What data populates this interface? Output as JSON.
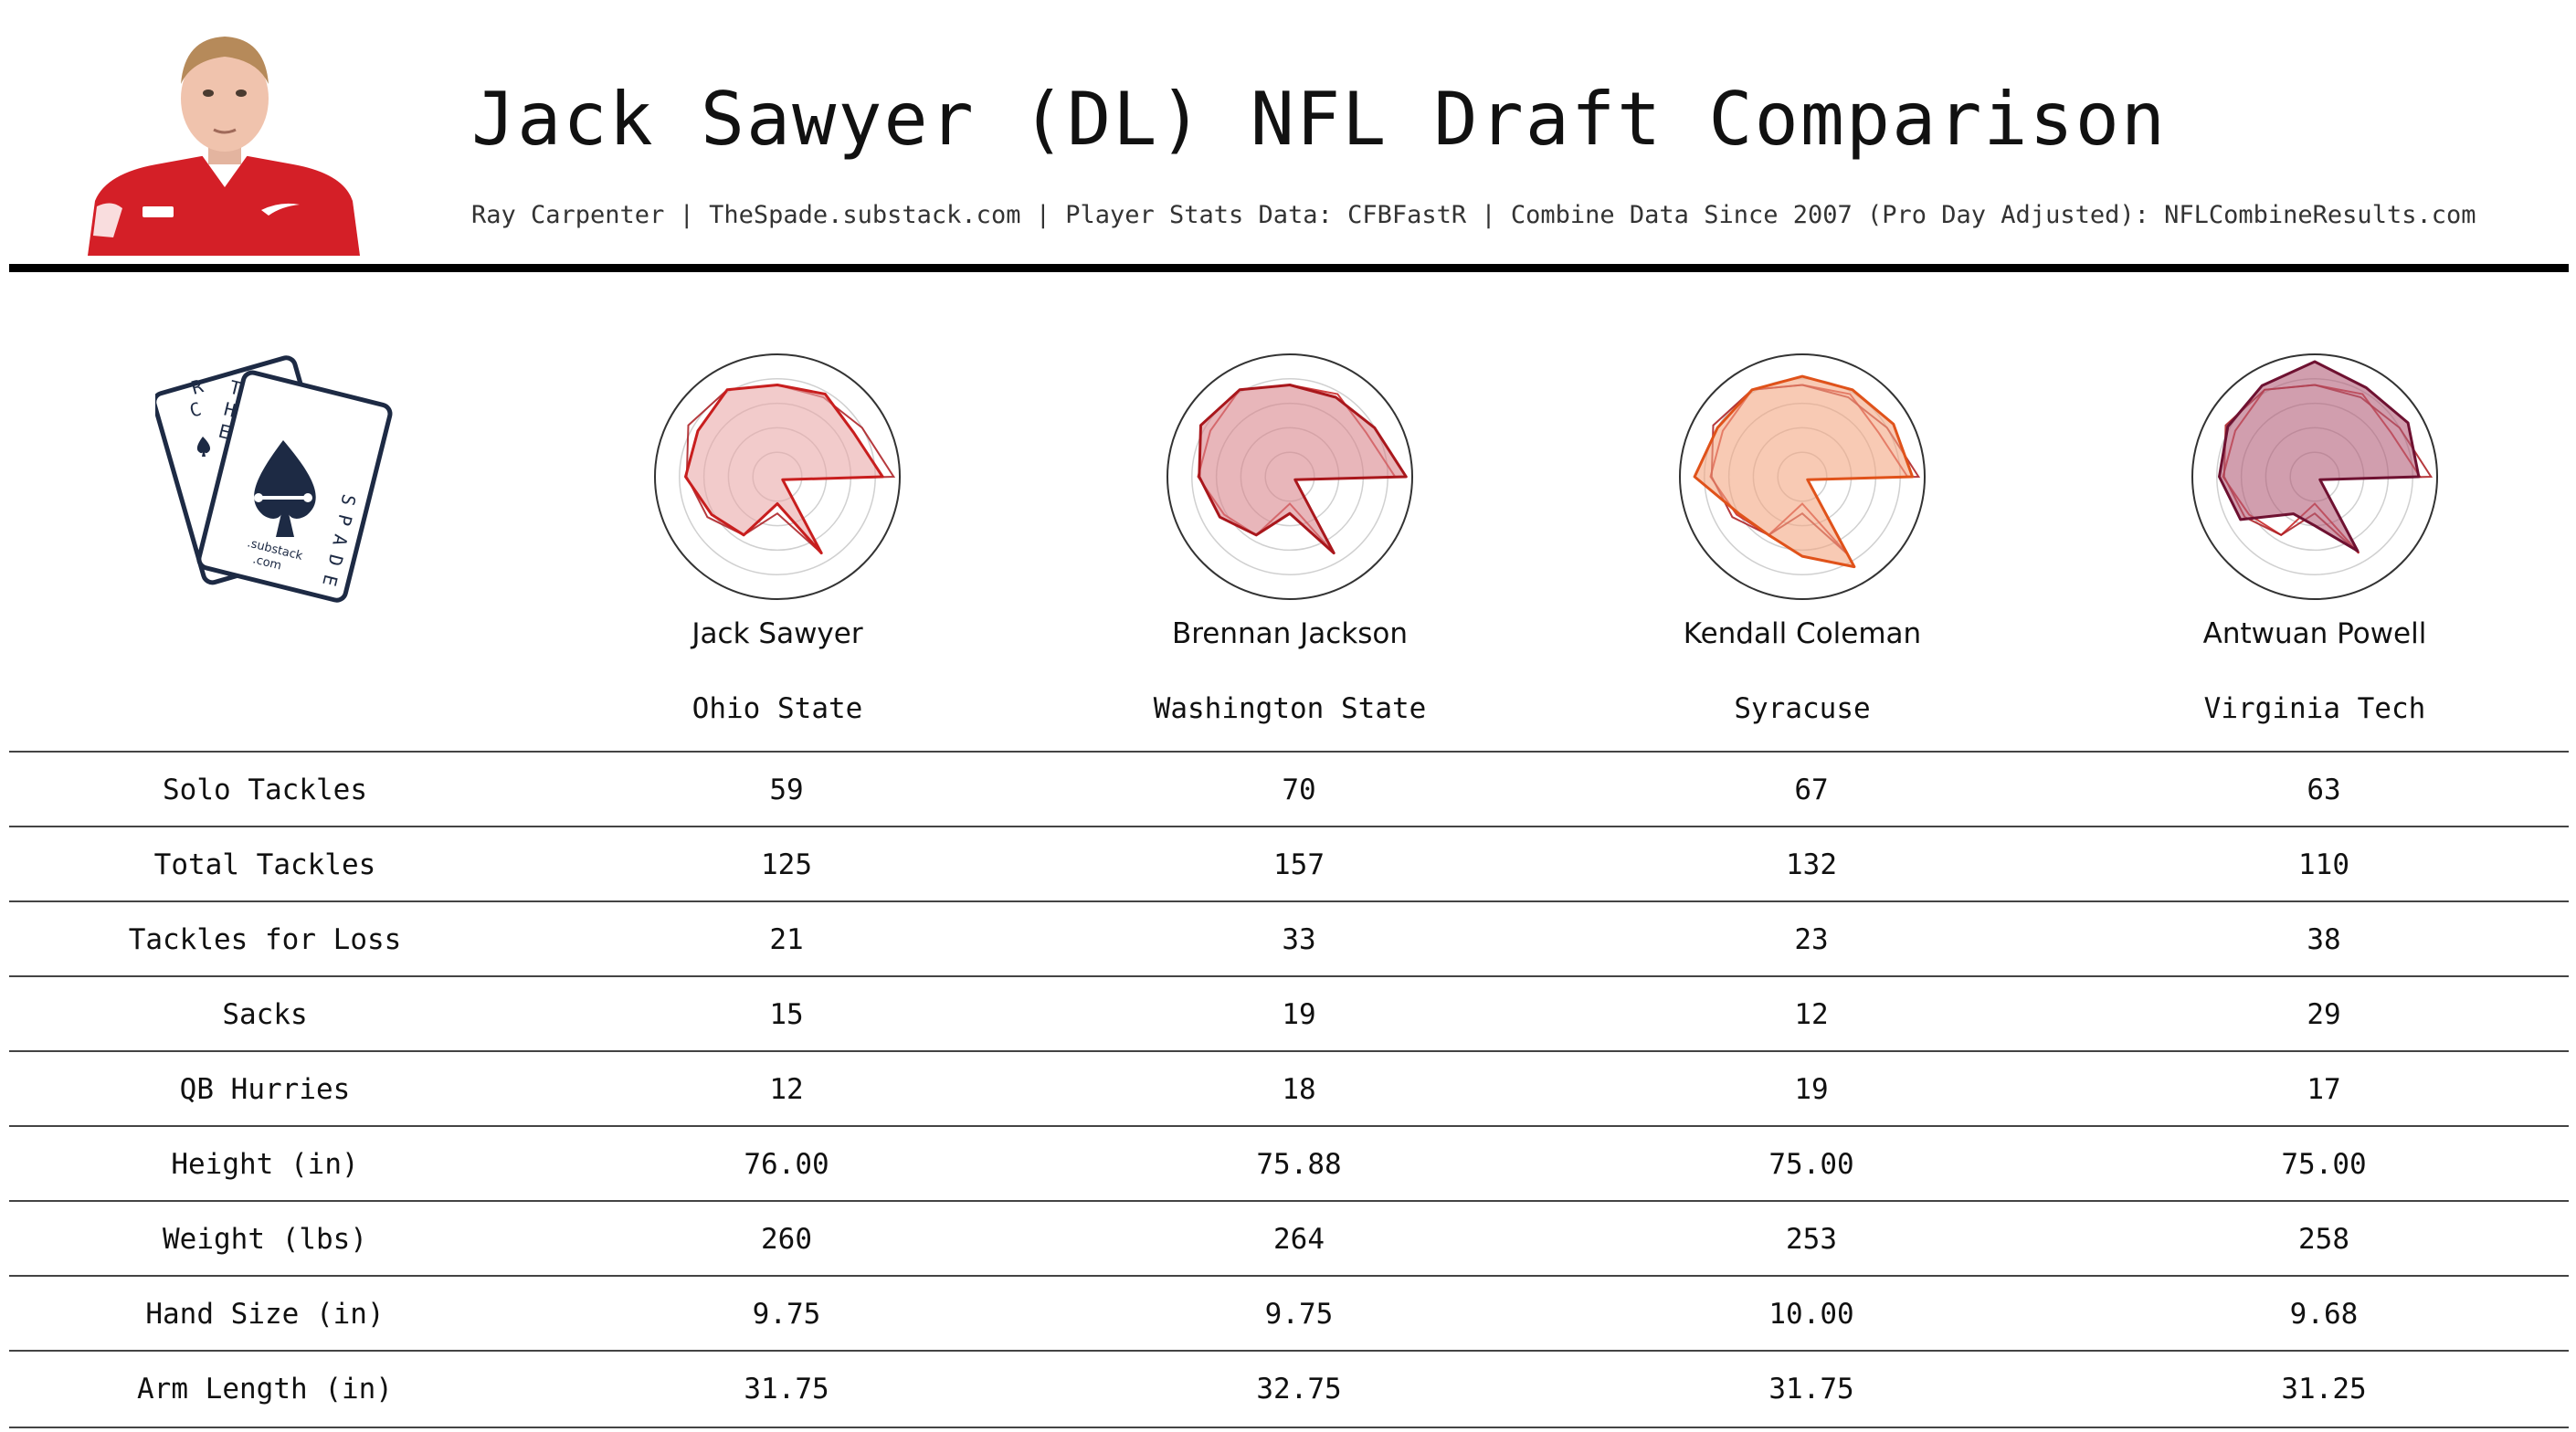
{
  "header": {
    "title": "Jack Sawyer (DL) NFL Draft Comparison",
    "subtitle": "Ray Carpenter | TheSpade.substack.com | Player Stats Data: CFBFastR | Combine Data Since 2007 (Pro Day Adjusted): NFLCombineResults.com"
  },
  "logo": {
    "letters": [
      "R",
      "C",
      "T",
      "H",
      "E",
      "S",
      "P",
      "A",
      "D",
      "E"
    ],
    "sub1": ".substack",
    "sub2": ".com"
  },
  "players": [
    {
      "name": "Jack Sawyer",
      "school": "Ohio State",
      "color": "#c81e1e",
      "fill": "#e9a8a8"
    },
    {
      "name": "Brennan Jackson",
      "school": "Washington State",
      "color": "#a9171c",
      "fill": "#d9868c"
    },
    {
      "name": "Kendall Coleman",
      "school": "Syracuse",
      "color": "#e0521a",
      "fill": "#f3a682"
    },
    {
      "name": "Antwuan Powell",
      "school": "Virginia Tech",
      "color": "#6e1131",
      "fill": "#b25e78"
    }
  ],
  "chart_data": {
    "type": "table",
    "columns": [
      "Jack Sawyer",
      "Brennan Jackson",
      "Kendall Coleman",
      "Antwuan Powell"
    ],
    "rows": [
      {
        "label": "Solo Tackles",
        "values": [
          "59",
          "70",
          "67",
          "63"
        ]
      },
      {
        "label": "Total Tackles",
        "values": [
          "125",
          "157",
          "132",
          "110"
        ]
      },
      {
        "label": "Tackles for Loss",
        "values": [
          "21",
          "33",
          "23",
          "38"
        ]
      },
      {
        "label": "Sacks",
        "values": [
          "15",
          "19",
          "12",
          "29"
        ]
      },
      {
        "label": "QB Hurries",
        "values": [
          "12",
          "18",
          "19",
          "17"
        ]
      },
      {
        "label": "Height (in)",
        "values": [
          "76.00",
          "75.88",
          "75.00",
          "75.00"
        ]
      },
      {
        "label": "Weight (lbs)",
        "values": [
          "260",
          "264",
          "253",
          "258"
        ]
      },
      {
        "label": "Hand Size (in)",
        "values": [
          "9.75",
          "9.75",
          "10.00",
          "9.68"
        ]
      },
      {
        "label": "Arm Length (in)",
        "values": [
          "31.75",
          "32.75",
          "31.75",
          "31.25"
        ]
      }
    ],
    "radar": {
      "rings": 5,
      "shapes": [
        {
          "player": "Jack Sawyer",
          "color": "#c81e1e",
          "fill": "#e9a8a8",
          "r": [
            0.75,
            0.78,
            0.72,
            0.86,
            0.05,
            0.72,
            0.22,
            0.55,
            0.62,
            0.75,
            0.75,
            0.82
          ]
        },
        {
          "player": "Brennan Jackson",
          "color": "#a9171c",
          "fill": "#d9868c",
          "r": [
            0.75,
            0.75,
            0.8,
            0.95,
            0.05,
            0.72,
            0.3,
            0.55,
            0.66,
            0.74,
            0.84,
            0.82
          ]
        },
        {
          "player": "Kendall Coleman",
          "color": "#e0521a",
          "fill": "#f3a682",
          "r": [
            0.82,
            0.82,
            0.86,
            0.9,
            0.05,
            0.85,
            0.65,
            0.55,
            0.6,
            0.88,
            0.8,
            0.82
          ]
        },
        {
          "player": "Antwuan Powell",
          "color": "#6e1131",
          "fill": "#b25e78",
          "r": [
            0.94,
            0.84,
            0.88,
            0.85,
            0.05,
            0.7,
            0.4,
            0.35,
            0.7,
            0.78,
            0.82,
            0.86
          ]
        }
      ],
      "overlays": [
        {
          "base": 0,
          "over": [
            1
          ]
        },
        {
          "base": 1,
          "over": [
            0
          ]
        },
        {
          "base": 2,
          "over": [
            0,
            1
          ]
        },
        {
          "base": 3,
          "over": [
            0,
            1
          ]
        }
      ]
    }
  }
}
